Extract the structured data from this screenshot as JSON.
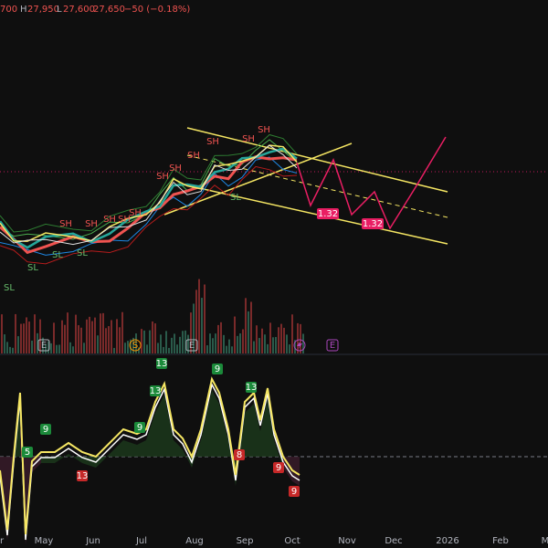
{
  "header": {
    "items": [
      "700",
      "H",
      "27,950",
      "L",
      "27,600",
      "27,650",
      "−50 (−0.18%)"
    ]
  },
  "x_axis": {
    "labels": [
      "r",
      "May",
      "Jun",
      "Jul",
      "Aug",
      "Sep",
      "Oct",
      "Nov",
      "Dec",
      "2026",
      "Feb",
      "M"
    ]
  },
  "price_pane": {
    "swing_highs": [
      "SH",
      "SH",
      "SH",
      "SH",
      "SH",
      "SH",
      "SH",
      "SH",
      "SH",
      "SH",
      "SH"
    ],
    "swing_lows": [
      "SL",
      "SL",
      "SL",
      "SL",
      "SL"
    ],
    "targets": [
      "1.32",
      "1.32"
    ],
    "events": [
      "E",
      "S",
      "E",
      "E"
    ]
  },
  "oscillator": {
    "green_counts": [
      "9",
      "5",
      "9",
      "13",
      "13",
      "9",
      "13"
    ],
    "red_counts": [
      "13",
      "8",
      "9",
      "9"
    ]
  }
}
